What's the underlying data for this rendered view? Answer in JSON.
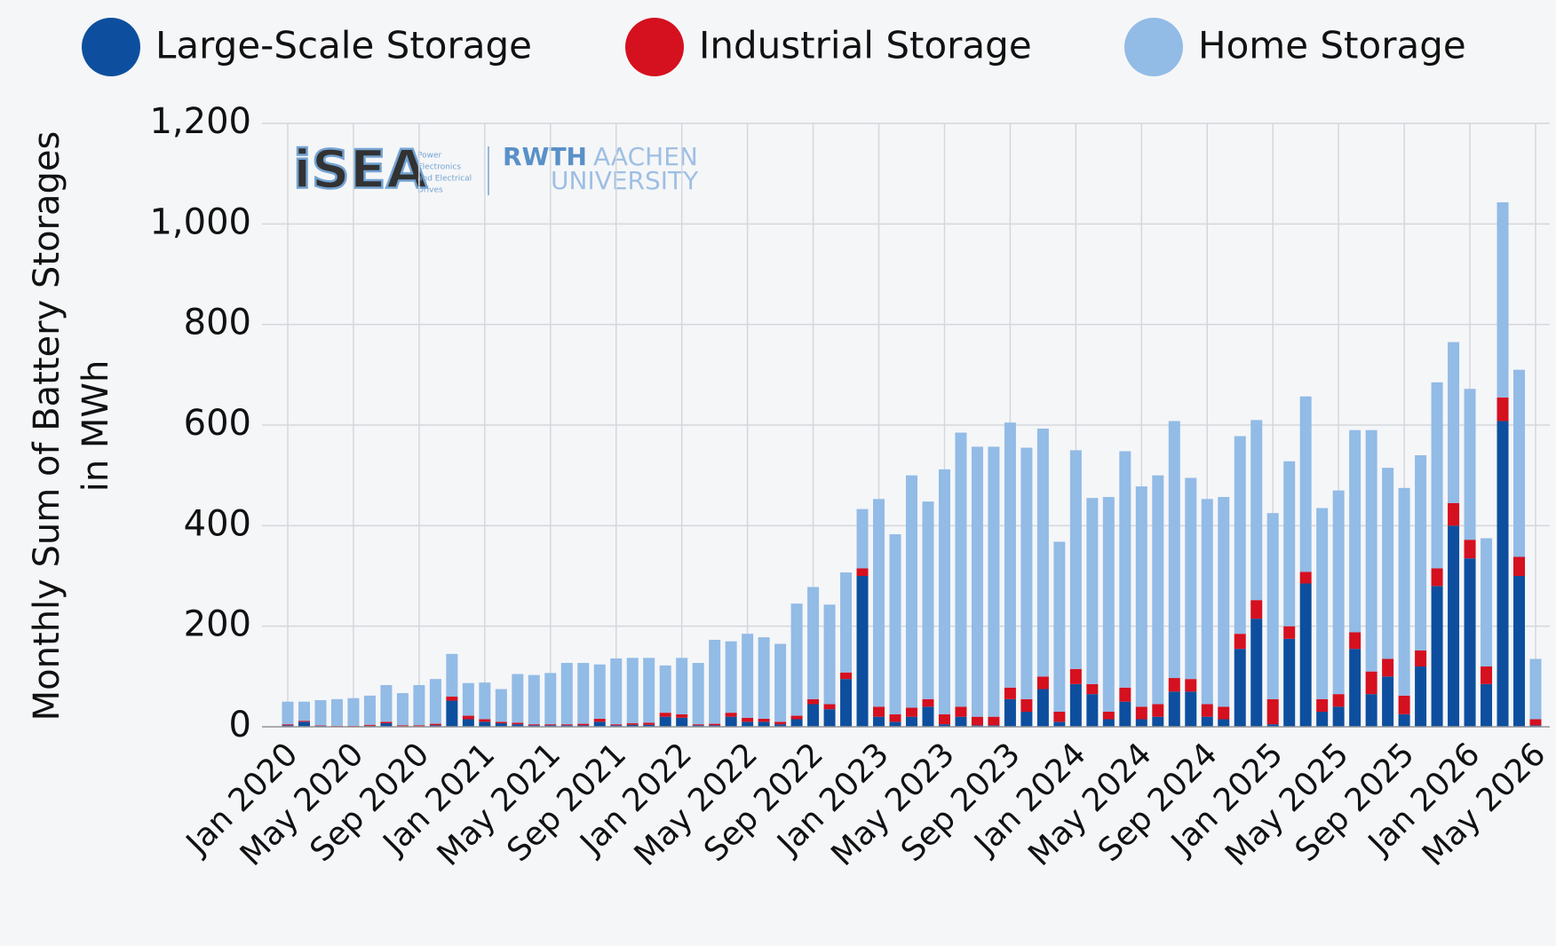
{
  "chart_data": {
    "type": "stacked_bar",
    "ylabel": [
      "Monthly Sum of Battery Storages",
      "in MWh"
    ],
    "logo": {
      "left": "iSEA",
      "left_note": [
        "Power",
        "Electronics",
        "and Electrical",
        "Drives"
      ],
      "right": [
        "RWTH",
        "AACHEN",
        "UNIVERSITY"
      ]
    },
    "categories": [
      "Jan 2020",
      null,
      null,
      null,
      "May 2020",
      null,
      null,
      null,
      "Sep 2020",
      null,
      null,
      null,
      "Jan 2021",
      null,
      null,
      null,
      "May 2021",
      null,
      null,
      null,
      "Sep 2021",
      null,
      null,
      null,
      "Jan 2022",
      null,
      null,
      null,
      "May 2022",
      null,
      null,
      null,
      "Sep 2022",
      null,
      null,
      null,
      "Jan 2023",
      null,
      null,
      null,
      "May 2023",
      null,
      null,
      null,
      "Sep 2023",
      null,
      null,
      null,
      "Jan 2024",
      null,
      null,
      null,
      "May 2024",
      null,
      null,
      null,
      "Sep 2024",
      null,
      null,
      null,
      "Jan 2025",
      null,
      null,
      null,
      "May 2025",
      null,
      null,
      null,
      "Sep 2025",
      null,
      null,
      null,
      "Jan 2026",
      null,
      null,
      null,
      "May 2026"
    ],
    "series": [
      {
        "name": "Large-Scale Storage",
        "color": "#0d4f9e",
        "values": [
          3,
          10,
          2,
          1,
          1,
          2,
          7,
          1,
          1,
          3,
          52,
          15,
          10,
          7,
          5,
          3,
          3,
          3,
          3,
          10,
          3,
          4,
          4,
          20,
          18,
          3,
          3,
          20,
          10,
          10,
          5,
          15,
          45,
          35,
          95,
          300,
          20,
          10,
          20,
          40,
          5,
          20,
          3,
          3,
          55,
          30,
          75,
          10,
          85,
          65,
          15,
          50,
          15,
          20,
          70,
          70,
          20,
          15,
          155,
          215,
          5,
          175,
          285,
          30,
          40,
          155,
          65,
          100,
          25,
          120,
          280,
          400,
          335,
          85,
          608,
          300,
          3
        ]
      },
      {
        "name": "Industrial Storage",
        "color": "#d5101f",
        "values": [
          2,
          2,
          1,
          1,
          1,
          2,
          3,
          2,
          2,
          3,
          8,
          7,
          5,
          3,
          3,
          2,
          2,
          2,
          3,
          6,
          2,
          3,
          4,
          8,
          7,
          2,
          3,
          8,
          8,
          6,
          5,
          7,
          10,
          10,
          13,
          15,
          20,
          15,
          18,
          15,
          20,
          20,
          17,
          17,
          23,
          25,
          25,
          20,
          30,
          20,
          15,
          28,
          25,
          25,
          27,
          25,
          25,
          25,
          30,
          37,
          50,
          25,
          23,
          25,
          25,
          33,
          45,
          35,
          37,
          32,
          35,
          45,
          37,
          35,
          47,
          38,
          12
        ]
      },
      {
        "name": "Home Storage",
        "color": "#92bbe6",
        "values": [
          45,
          38,
          50,
          53,
          55,
          58,
          73,
          64,
          80,
          89,
          85,
          65,
          73,
          65,
          97,
          98,
          102,
          122,
          121,
          108,
          131,
          130,
          129,
          94,
          112,
          122,
          167,
          142,
          167,
          162,
          155,
          223,
          223,
          198,
          199,
          118,
          413,
          358,
          462,
          393,
          487,
          545,
          537,
          537,
          527,
          500,
          493,
          338,
          435,
          370,
          427,
          470,
          438,
          455,
          511,
          400,
          408,
          417,
          393,
          358,
          370,
          328,
          349,
          380,
          405,
          402,
          480,
          380,
          413,
          388,
          370,
          320,
          300,
          255,
          388,
          372,
          120
        ]
      }
    ],
    "ylim": [
      0,
      1200
    ],
    "yticks": [
      0,
      200,
      400,
      600,
      800,
      {
        "value": 1000,
        "label": "1,000"
      },
      {
        "value": 1200,
        "label": "1,200"
      }
    ],
    "grid": true
  }
}
